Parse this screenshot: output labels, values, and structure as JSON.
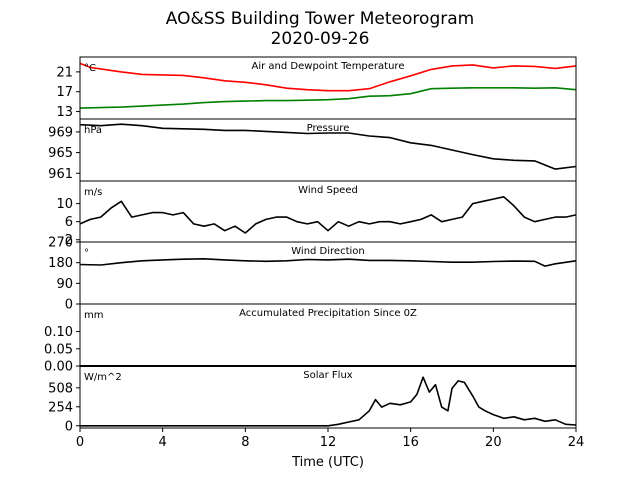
{
  "title_line1": "AO&SS Building Tower Meteorogram",
  "title_line2": "2020-09-26",
  "xlabel": "Time (UTC)",
  "xticks": [
    "0",
    "4",
    "8",
    "12",
    "16",
    "20",
    "24"
  ],
  "chart_data": [
    {
      "type": "line",
      "title": "Air and Dewpoint Temperature",
      "unit": "°C",
      "xlim": [
        0,
        24
      ],
      "ylim": [
        11.5,
        24
      ],
      "yticks": [
        13,
        17,
        21
      ],
      "series": [
        {
          "color": "#ff0000",
          "x": [
            0,
            0.5,
            1,
            2,
            3,
            4,
            5,
            6,
            7,
            8,
            9,
            10,
            11,
            12,
            13,
            14,
            15,
            16,
            17,
            18,
            19,
            20,
            21,
            22,
            23,
            24
          ],
          "y": [
            22.7,
            21.9,
            21.6,
            21.0,
            20.5,
            20.4,
            20.3,
            19.8,
            19.2,
            18.9,
            18.4,
            17.7,
            17.4,
            17.2,
            17.2,
            17.6,
            19.0,
            20.2,
            21.5,
            22.2,
            22.4,
            21.8,
            22.2,
            22.1,
            21.7,
            22.2
          ]
        },
        {
          "color": "#008000",
          "x": [
            0,
            1,
            2,
            3,
            4,
            5,
            6,
            7,
            8,
            9,
            10,
            11,
            12,
            13,
            14,
            15,
            16,
            17,
            18,
            19,
            20,
            21,
            22,
            23,
            24
          ],
          "y": [
            13.7,
            13.8,
            13.9,
            14.1,
            14.3,
            14.5,
            14.8,
            15.0,
            15.1,
            15.2,
            15.2,
            15.3,
            15.4,
            15.6,
            16.1,
            16.2,
            16.6,
            17.6,
            17.7,
            17.8,
            17.8,
            17.8,
            17.7,
            17.8,
            17.4
          ]
        }
      ]
    },
    {
      "type": "line",
      "title": "Pressure",
      "unit": "hPa",
      "xlim": [
        0,
        24
      ],
      "ylim": [
        959.5,
        971.5
      ],
      "yticks": [
        961,
        965,
        969
      ],
      "series": [
        {
          "color": "#000000",
          "x": [
            0,
            1,
            2,
            3,
            4,
            5,
            6,
            7,
            8,
            9,
            10,
            11,
            12,
            13,
            14,
            15,
            16,
            17,
            18,
            19,
            20,
            21,
            22,
            23,
            24
          ],
          "y": [
            970.4,
            970.2,
            970.5,
            970.2,
            969.7,
            969.6,
            969.5,
            969.3,
            969.3,
            969.1,
            968.9,
            968.7,
            968.8,
            968.8,
            968.2,
            967.9,
            966.9,
            966.4,
            965.5,
            964.6,
            963.8,
            963.5,
            963.4,
            961.8,
            962.3
          ]
        }
      ]
    },
    {
      "type": "line",
      "title": "Wind Speed",
      "unit": "m/s",
      "xlim": [
        0,
        24
      ],
      "ylim": [
        1.5,
        15
      ],
      "yticks": [
        2,
        6,
        10
      ],
      "series": [
        {
          "color": "#000000",
          "x": [
            0,
            0.5,
            1,
            1.5,
            2,
            2.5,
            3,
            3.5,
            4,
            4.5,
            5,
            5.5,
            6,
            6.5,
            7,
            7.5,
            8,
            8.5,
            9,
            9.5,
            10,
            10.5,
            11,
            11.5,
            12,
            12.5,
            13,
            13.5,
            14,
            14.5,
            15,
            15.5,
            16,
            16.5,
            17,
            17.5,
            18,
            18.5,
            19,
            19.5,
            20,
            20.5,
            21,
            21.5,
            22,
            22.5,
            23,
            23.5,
            24
          ],
          "y": [
            5.5,
            6.5,
            7,
            9,
            10.5,
            7,
            7.5,
            8,
            8,
            7.5,
            8,
            5.5,
            5,
            5.5,
            4,
            5,
            3.5,
            5.5,
            6.5,
            7,
            7,
            6,
            5.5,
            6,
            4,
            6,
            5,
            6,
            5.5,
            6,
            6,
            5.5,
            6,
            6.5,
            7.5,
            6,
            6.5,
            7,
            10,
            10.5,
            11,
            11.5,
            9.5,
            7,
            6,
            6.5,
            7,
            7,
            7.5
          ]
        }
      ]
    },
    {
      "type": "line",
      "title": "Wind Direction",
      "unit": "°",
      "xlim": [
        0,
        24
      ],
      "ylim": [
        0,
        270
      ],
      "yticks": [
        0,
        90,
        180,
        270
      ],
      "series": [
        {
          "color": "#000000",
          "x": [
            0,
            1,
            2,
            3,
            4,
            5,
            6,
            7,
            8,
            9,
            10,
            11,
            12,
            13,
            14,
            15,
            16,
            17,
            18,
            19,
            20,
            21,
            22,
            22.5,
            23,
            24
          ],
          "y": [
            172,
            170,
            180,
            188,
            192,
            195,
            197,
            192,
            188,
            186,
            188,
            194,
            192,
            195,
            190,
            190,
            188,
            185,
            182,
            182,
            185,
            187,
            186,
            165,
            175,
            188
          ]
        }
      ]
    },
    {
      "type": "line",
      "title": "Accumulated Precipitation Since 0Z",
      "unit": "mm",
      "xlim": [
        0,
        24
      ],
      "ylim": [
        0,
        0.18
      ],
      "yticks": [
        0.0,
        0.05,
        0.1
      ],
      "series": [
        {
          "color": "#000000",
          "x": [
            0,
            24
          ],
          "y": [
            0,
            0
          ]
        }
      ]
    },
    {
      "type": "line",
      "title": "Solar Flux",
      "unit": "W/m^2",
      "xlim": [
        0,
        24
      ],
      "ylim": [
        -30,
        800
      ],
      "yticks": [
        0,
        254,
        508
      ],
      "series": [
        {
          "color": "#000000",
          "x": [
            0,
            12,
            12.5,
            13,
            13.5,
            14,
            14.3,
            14.6,
            15,
            15.5,
            16,
            16.3,
            16.6,
            16.9,
            17.2,
            17.5,
            17.8,
            18,
            18.3,
            18.6,
            19,
            19.3,
            19.6,
            20,
            20.5,
            21,
            21.5,
            22,
            22.5,
            23,
            23.5,
            24
          ],
          "y": [
            0,
            0,
            20,
            50,
            80,
            200,
            350,
            250,
            300,
            280,
            320,
            420,
            650,
            450,
            550,
            250,
            200,
            500,
            600,
            580,
            400,
            250,
            200,
            150,
            100,
            120,
            80,
            100,
            60,
            80,
            20,
            10
          ]
        }
      ]
    }
  ]
}
